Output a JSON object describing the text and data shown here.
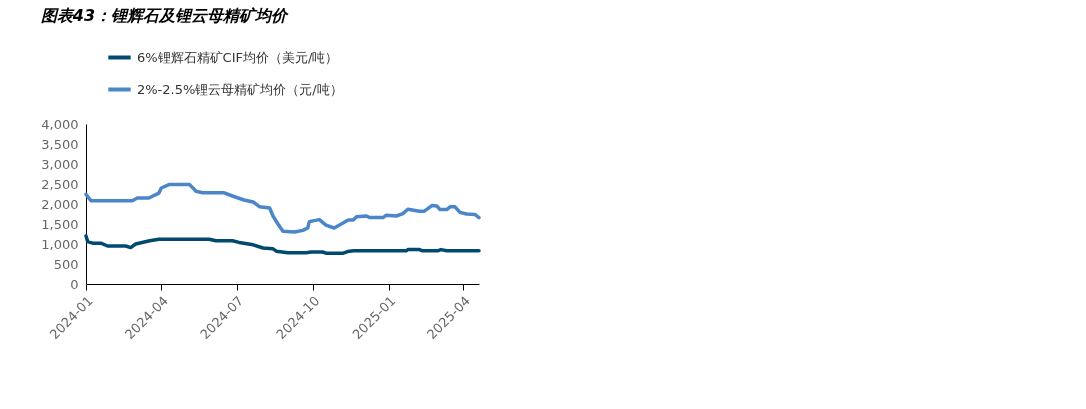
{
  "chart_data": {
    "type": "line",
    "title": "图表43：锂辉石及锂云母精矿均价",
    "xlim": [
      "2024-01-01",
      "2025-04-20"
    ],
    "xticks": [
      "2024-01",
      "2024-04",
      "2024-07",
      "2024-10",
      "2025-01",
      "2025-04"
    ],
    "ylim": [
      0,
      4000
    ],
    "yticks": [
      0,
      {
        "value": 500,
        "label": "500"
      },
      {
        "value": 1000,
        "label": "1,000"
      },
      {
        "value": 1500,
        "label": "1,500"
      },
      {
        "value": 2000,
        "label": "2,000"
      },
      {
        "value": 2500,
        "label": "2,500"
      },
      {
        "value": 3000,
        "label": "3,000"
      },
      {
        "value": 3500,
        "label": "3,500"
      },
      {
        "value": 4000,
        "label": "4,000"
      }
    ],
    "grid": false,
    "legend": "top left",
    "marker": "none",
    "line_style": "solid",
    "series": [
      {
        "name": "6%锂辉石精矿CIF均价（美元/吨）",
        "color": "#004a6e",
        "x": [
          "2024-01-01",
          "2024-01-03",
          "2024-01-09",
          "2024-01-19",
          "2024-01-27",
          "2024-02-18",
          "2024-02-24",
          "2024-03-01",
          "2024-03-18",
          "2024-03-29",
          "2024-05-29",
          "2024-06-06",
          "2024-06-26",
          "2024-07-04",
          "2024-07-21",
          "2024-08-02",
          "2024-08-14",
          "2024-08-18",
          "2024-09-01",
          "2024-09-23",
          "2024-09-29",
          "2024-10-13",
          "2024-10-17",
          "2024-11-07",
          "2024-11-14",
          "2024-11-20",
          "2025-01-22",
          "2025-01-24",
          "2025-02-07",
          "2025-02-11",
          "2025-03-01",
          "2025-03-05",
          "2025-03-12",
          "2025-04-20"
        ],
        "values": [
          1200,
          1060,
          1020,
          1020,
          950,
          950,
          910,
          1000,
          1080,
          1120,
          1120,
          1080,
          1080,
          1040,
          980,
          900,
          880,
          820,
          780,
          780,
          800,
          800,
          770,
          770,
          820,
          830,
          830,
          860,
          860,
          830,
          830,
          860,
          830,
          830
        ]
      },
      {
        "name": "2%-2.5%锂云母精矿均价（元/吨）",
        "color": "#4a86c8",
        "x": [
          "2024-01-01",
          "2024-01-07",
          "2024-02-26",
          "2024-03-03",
          "2024-03-17",
          "2024-03-29",
          "2024-04-01",
          "2024-04-11",
          "2024-05-05",
          "2024-05-13",
          "2024-05-21",
          "2024-06-16",
          "2024-06-26",
          "2024-07-10",
          "2024-07-21",
          "2024-07-29",
          "2024-08-10",
          "2024-08-14",
          "2024-08-20",
          "2024-08-26",
          "2024-09-09",
          "2024-09-19",
          "2024-09-25",
          "2024-09-27",
          "2024-10-09",
          "2024-10-17",
          "2024-10-27",
          "2024-11-13",
          "2024-11-19",
          "2024-11-23",
          "2024-12-05",
          "2024-12-09",
          "2024-12-25",
          "2024-12-29",
          "2025-01-10",
          "2025-01-18",
          "2025-01-24",
          "2025-02-07",
          "2025-02-13",
          "2025-02-22",
          "2025-02-28",
          "2025-03-04",
          "2025-03-12",
          "2025-03-16",
          "2025-03-22",
          "2025-03-28",
          "2025-04-05",
          "2025-04-15",
          "2025-04-20"
        ],
        "values": [
          2240,
          2080,
          2080,
          2150,
          2150,
          2270,
          2400,
          2490,
          2490,
          2320,
          2280,
          2280,
          2200,
          2100,
          2050,
          1930,
          1900,
          1700,
          1500,
          1320,
          1300,
          1340,
          1400,
          1560,
          1610,
          1470,
          1400,
          1600,
          1600,
          1680,
          1700,
          1660,
          1660,
          1720,
          1700,
          1760,
          1870,
          1820,
          1820,
          1960,
          1950,
          1860,
          1860,
          1930,
          1930,
          1790,
          1750,
          1740,
          1660
        ]
      }
    ]
  }
}
